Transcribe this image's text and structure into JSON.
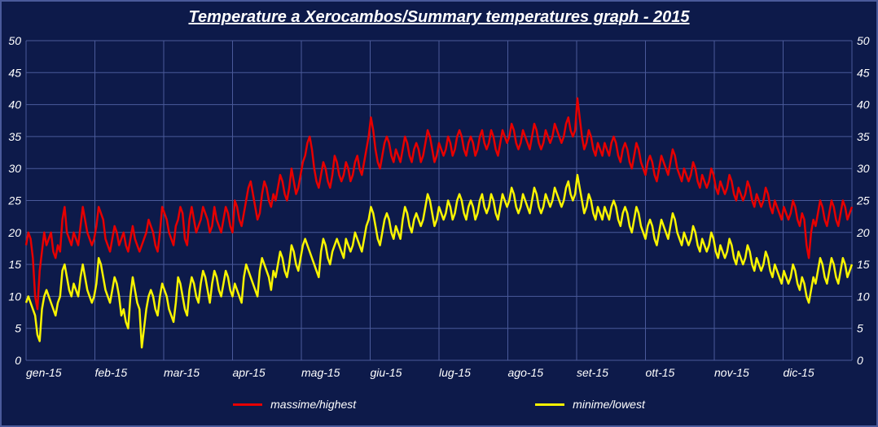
{
  "title": "Temperature a Xerocambos/Summary temperatures graph - 2015",
  "title_fontsize": 20,
  "background_color": "#0d1a4a",
  "grid_color": "#4a5a9a",
  "text_color": "#ffffff",
  "axis_fontsize": 14,
  "y_axis": {
    "min": 0,
    "max": 50,
    "tick_step": 5
  },
  "x_axis": {
    "labels": [
      "gen-15",
      "feb-15",
      "mar-15",
      "apr-15",
      "mag-15",
      "giu-15",
      "lug-15",
      "ago-15",
      "set-15",
      "ott-15",
      "nov-15",
      "dic-15"
    ]
  },
  "series": [
    {
      "name": "massime/highest",
      "color": "#e60000",
      "line_width": 2.5,
      "values": [
        18,
        20,
        19,
        16,
        10,
        8,
        14,
        17,
        20,
        18,
        19,
        20,
        17,
        16,
        18,
        17,
        22,
        24,
        20,
        19,
        18,
        20,
        19,
        18,
        21,
        24,
        22,
        20,
        19,
        18,
        19,
        21,
        24,
        23,
        22,
        19,
        18,
        17,
        19,
        21,
        20,
        18,
        19,
        20,
        18,
        17,
        19,
        21,
        19,
        18,
        17,
        18,
        19,
        20,
        22,
        21,
        20,
        18,
        17,
        20,
        24,
        23,
        22,
        20,
        19,
        18,
        21,
        22,
        24,
        23,
        19,
        18,
        22,
        24,
        22,
        20,
        21,
        22,
        24,
        23,
        22,
        20,
        21,
        24,
        22,
        21,
        20,
        22,
        24,
        23,
        21,
        20,
        25,
        24,
        22,
        21,
        23,
        25,
        27,
        28,
        26,
        24,
        22,
        23,
        26,
        28,
        27,
        25,
        24,
        26,
        25,
        27,
        29,
        28,
        26,
        25,
        27,
        30,
        28,
        26,
        27,
        29,
        31,
        32,
        34,
        35,
        33,
        30,
        28,
        27,
        29,
        31,
        30,
        28,
        27,
        29,
        32,
        31,
        29,
        28,
        29,
        31,
        30,
        28,
        29,
        31,
        32,
        30,
        29,
        31,
        33,
        35,
        38,
        36,
        33,
        31,
        30,
        32,
        34,
        35,
        34,
        32,
        31,
        33,
        32,
        31,
        33,
        35,
        34,
        32,
        31,
        33,
        34,
        33,
        31,
        32,
        34,
        36,
        35,
        33,
        31,
        32,
        34,
        33,
        32,
        33,
        35,
        34,
        32,
        33,
        35,
        36,
        35,
        33,
        32,
        34,
        35,
        34,
        32,
        33,
        35,
        36,
        34,
        33,
        34,
        36,
        35,
        33,
        32,
        34,
        36,
        35,
        34,
        35,
        37,
        36,
        34,
        33,
        34,
        36,
        35,
        34,
        33,
        35,
        37,
        36,
        34,
        33,
        34,
        36,
        35,
        34,
        35,
        37,
        36,
        35,
        34,
        35,
        37,
        38,
        36,
        35,
        36,
        41,
        38,
        35,
        33,
        34,
        36,
        35,
        33,
        32,
        34,
        33,
        32,
        34,
        33,
        32,
        34,
        35,
        34,
        32,
        31,
        33,
        34,
        33,
        31,
        30,
        32,
        34,
        33,
        31,
        30,
        29,
        31,
        32,
        31,
        29,
        28,
        30,
        32,
        31,
        30,
        29,
        31,
        33,
        32,
        30,
        29,
        28,
        30,
        29,
        28,
        29,
        31,
        30,
        28,
        27,
        29,
        28,
        27,
        28,
        30,
        29,
        27,
        26,
        28,
        27,
        26,
        27,
        29,
        28,
        26,
        25,
        27,
        26,
        25,
        26,
        28,
        27,
        25,
        24,
        26,
        25,
        24,
        25,
        27,
        26,
        24,
        23,
        25,
        24,
        23,
        22,
        24,
        23,
        22,
        23,
        25,
        24,
        22,
        21,
        23,
        22,
        18,
        16,
        20,
        22,
        21,
        23,
        25,
        24,
        22,
        21,
        23,
        25,
        24,
        22,
        21,
        23,
        25,
        24,
        22,
        23,
        24
      ]
    },
    {
      "name": "minime/lowest",
      "color": "#f8f400",
      "line_width": 2.5,
      "values": [
        9,
        10,
        9,
        8,
        7,
        4,
        3,
        8,
        10,
        11,
        10,
        9,
        8,
        7,
        9,
        10,
        14,
        15,
        13,
        11,
        10,
        12,
        11,
        10,
        13,
        15,
        13,
        11,
        10,
        9,
        10,
        12,
        16,
        15,
        13,
        11,
        10,
        9,
        11,
        13,
        12,
        10,
        7,
        8,
        6,
        5,
        10,
        13,
        11,
        9,
        8,
        2,
        5,
        8,
        10,
        11,
        10,
        8,
        7,
        10,
        12,
        11,
        10,
        8,
        7,
        6,
        9,
        13,
        12,
        10,
        8,
        7,
        11,
        13,
        12,
        10,
        9,
        12,
        14,
        13,
        11,
        9,
        12,
        14,
        13,
        11,
        10,
        12,
        14,
        13,
        11,
        10,
        12,
        11,
        10,
        9,
        13,
        15,
        14,
        13,
        12,
        11,
        10,
        14,
        16,
        15,
        14,
        13,
        11,
        14,
        13,
        15,
        17,
        16,
        14,
        13,
        15,
        18,
        17,
        15,
        14,
        16,
        18,
        19,
        18,
        17,
        16,
        15,
        14,
        13,
        17,
        19,
        18,
        16,
        15,
        17,
        18,
        19,
        18,
        17,
        16,
        19,
        18,
        17,
        18,
        20,
        19,
        18,
        17,
        19,
        21,
        22,
        24,
        23,
        21,
        19,
        18,
        20,
        22,
        23,
        22,
        20,
        19,
        21,
        20,
        19,
        22,
        24,
        23,
        21,
        20,
        22,
        23,
        22,
        21,
        22,
        24,
        26,
        25,
        23,
        21,
        22,
        24,
        23,
        22,
        23,
        25,
        24,
        22,
        23,
        25,
        26,
        25,
        23,
        22,
        24,
        25,
        24,
        22,
        23,
        25,
        26,
        24,
        23,
        24,
        26,
        25,
        23,
        22,
        24,
        26,
        25,
        24,
        25,
        27,
        26,
        24,
        23,
        24,
        26,
        25,
        24,
        23,
        25,
        27,
        26,
        24,
        23,
        24,
        26,
        25,
        24,
        25,
        27,
        26,
        25,
        24,
        25,
        27,
        28,
        26,
        25,
        26,
        29,
        27,
        25,
        23,
        24,
        26,
        25,
        23,
        22,
        24,
        23,
        22,
        24,
        23,
        22,
        24,
        25,
        24,
        22,
        21,
        23,
        24,
        23,
        21,
        20,
        22,
        24,
        23,
        21,
        20,
        19,
        21,
        22,
        21,
        19,
        18,
        20,
        22,
        21,
        20,
        19,
        21,
        23,
        22,
        20,
        19,
        18,
        20,
        19,
        18,
        19,
        21,
        20,
        18,
        17,
        19,
        18,
        17,
        18,
        20,
        19,
        17,
        16,
        18,
        17,
        16,
        17,
        19,
        18,
        16,
        15,
        17,
        16,
        15,
        16,
        18,
        17,
        15,
        14,
        16,
        15,
        14,
        15,
        17,
        16,
        14,
        13,
        15,
        14,
        13,
        12,
        14,
        13,
        12,
        13,
        15,
        14,
        12,
        11,
        13,
        12,
        10,
        9,
        11,
        13,
        12,
        14,
        16,
        15,
        13,
        12,
        14,
        16,
        15,
        13,
        12,
        14,
        16,
        15,
        13,
        14,
        15
      ]
    }
  ],
  "legend": {
    "items": [
      {
        "label": "massime/highest",
        "color": "#e60000"
      },
      {
        "label": "minime/lowest",
        "color": "#f8f400"
      }
    ],
    "fontsize": 14
  }
}
